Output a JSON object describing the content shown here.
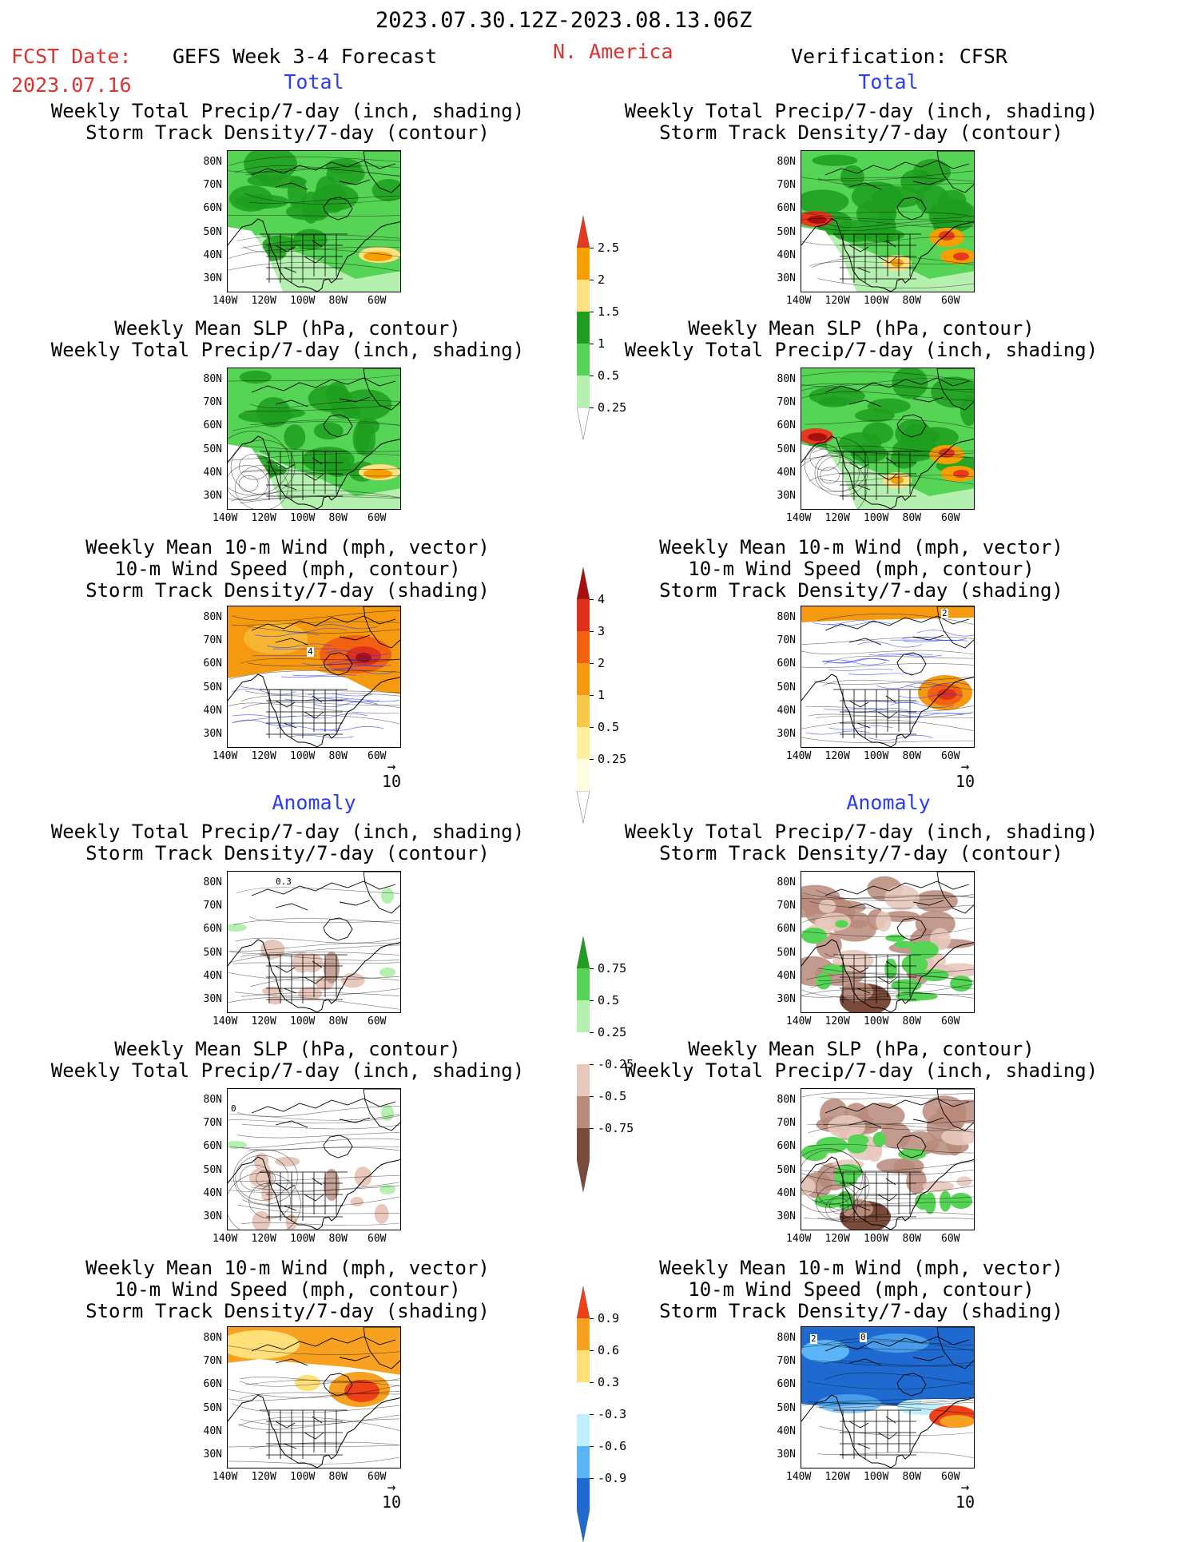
{
  "header": {
    "period": "2023.07.30.12Z-2023.08.13.06Z",
    "fcst_label": "FCST Date:",
    "fcst_date": "2023.07.16",
    "model": "GEFS Week 3-4 Forecast",
    "region": "N. America",
    "verification": "Verification: CFSR"
  },
  "sections": {
    "total": "Total",
    "anomaly": "Anomaly"
  },
  "panel_titles": {
    "precip_storm": [
      "Weekly Total Precip/7-day (inch, shading)",
      "Storm Track Density/7-day (contour)"
    ],
    "slp_precip": [
      "Weekly Mean SLP (hPa, contour)",
      "Weekly Total Precip/7-day (inch, shading)"
    ],
    "wind_storm": [
      "Weekly Mean 10-m Wind (mph, vector)",
      "10-m Wind Speed (mph, contour)",
      "Storm Track Density/7-day (shading)"
    ]
  },
  "axes": {
    "lat_labels": [
      "80N",
      "70N",
      "60N",
      "50N",
      "40N",
      "30N"
    ],
    "lon_labels": [
      "140W",
      "120W",
      "100W",
      "80W",
      "60W"
    ]
  },
  "vector_ref": "10",
  "colorbars": {
    "precip_total": {
      "labels": [
        "2.5",
        "2",
        "1.5",
        "1",
        "0.5",
        "0.25"
      ],
      "colors": [
        "#e53a1e",
        "#f5a000",
        "#ffe082",
        "#1f9e1f",
        "#55d455",
        "#b6f0b0"
      ]
    },
    "storm_total": {
      "labels": [
        "4",
        "3",
        "2",
        "1",
        "0.5",
        "0.25"
      ],
      "colors": [
        "#a80e0e",
        "#e0301a",
        "#f26012",
        "#f59a10",
        "#f8c84a",
        "#fff0a0",
        "#fffde0"
      ]
    },
    "precip_anom": {
      "labels": [
        "0.75",
        "0.5",
        "0.25",
        "-0.25",
        "-0.5",
        "-0.75"
      ],
      "colors": [
        "#1f9e1f",
        "#55d455",
        "#b6f0b0",
        "#ffffff",
        "#e8c8bc",
        "#b88a7a",
        "#7a4a3a"
      ]
    },
    "storm_anom": {
      "labels": [
        "0.9",
        "0.6",
        "0.3",
        "-0.3",
        "-0.6",
        "-0.9"
      ],
      "colors": [
        "#f04018",
        "#f8a020",
        "#ffe078",
        "#ffffff",
        "#bff0ff",
        "#5ab4f5",
        "#1f6ad0"
      ]
    }
  },
  "map_annotations": {
    "l_wind_total": "4",
    "l_precip_anom": "0.3",
    "l_slp_anom": "0",
    "r_wind_total": "2",
    "r_wind_anom_a": "2",
    "r_wind_anom_b": "0"
  }
}
